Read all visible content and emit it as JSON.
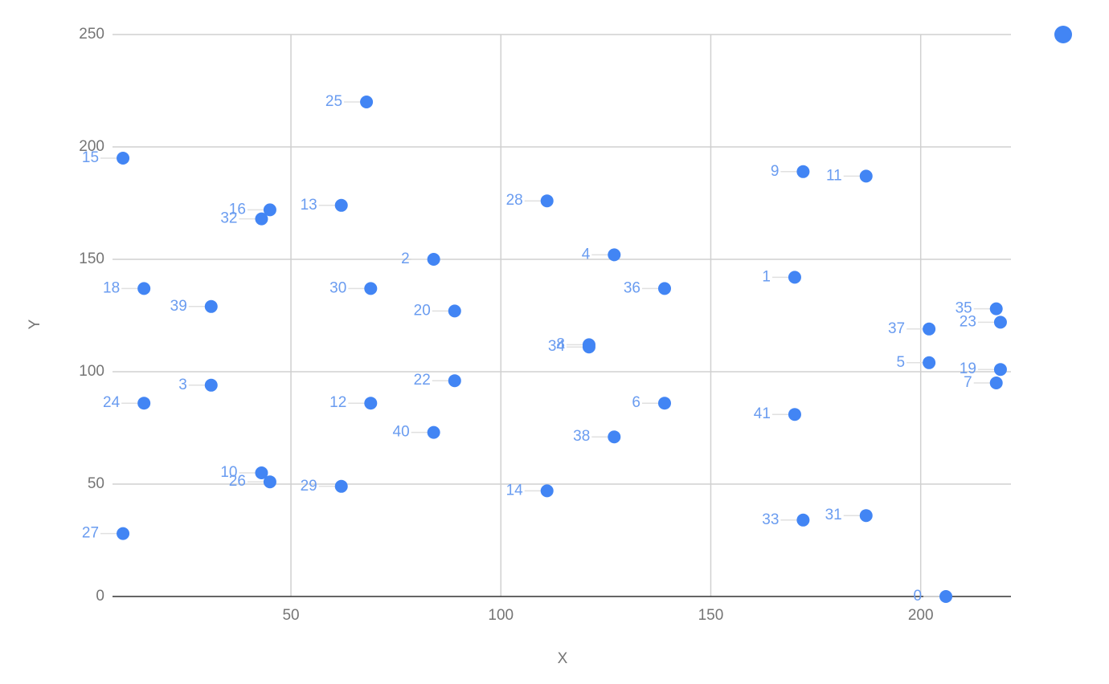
{
  "chart_data": {
    "type": "scatter",
    "x_label": "X",
    "y_label": "Y",
    "point_labels": [
      "0",
      "1",
      "2",
      "3",
      "4",
      "5",
      "6",
      "7",
      "8",
      "9",
      "10",
      "11",
      "12",
      "13",
      "14",
      "15",
      "16",
      "18",
      "19",
      "20",
      "22",
      "23",
      "24",
      "25",
      "26",
      "27",
      "28",
      "29",
      "30",
      "31",
      "32",
      "33",
      "34",
      "35",
      "36",
      "37",
      "38",
      "39",
      "40",
      "41"
    ],
    "x": [
      206,
      170,
      84,
      31,
      127,
      202,
      139,
      218,
      121,
      172,
      43,
      187,
      69,
      62,
      111,
      10,
      45,
      15,
      219,
      89,
      89,
      219,
      15,
      68,
      45,
      10,
      111,
      62,
      69,
      187,
      43,
      172,
      121,
      218,
      139,
      202,
      127,
      31,
      84,
      170
    ],
    "y": [
      0,
      142,
      150,
      94,
      152,
      104,
      86,
      95,
      112,
      189,
      55,
      187,
      86,
      174,
      47,
      195,
      172,
      137,
      101,
      127,
      96,
      122,
      86,
      220,
      51,
      28,
      176,
      49,
      137,
      36,
      168,
      34,
      111,
      128,
      137,
      119,
      71,
      129,
      73,
      81
    ],
    "color": "#4285f4",
    "xlim": [
      7.5,
      221.5
    ],
    "xticks": [
      50,
      100,
      150,
      200
    ],
    "ylim": [
      0,
      250
    ],
    "yticks": [
      0,
      50,
      100,
      150,
      200,
      250
    ],
    "grid": true,
    "legend": "top-right"
  }
}
